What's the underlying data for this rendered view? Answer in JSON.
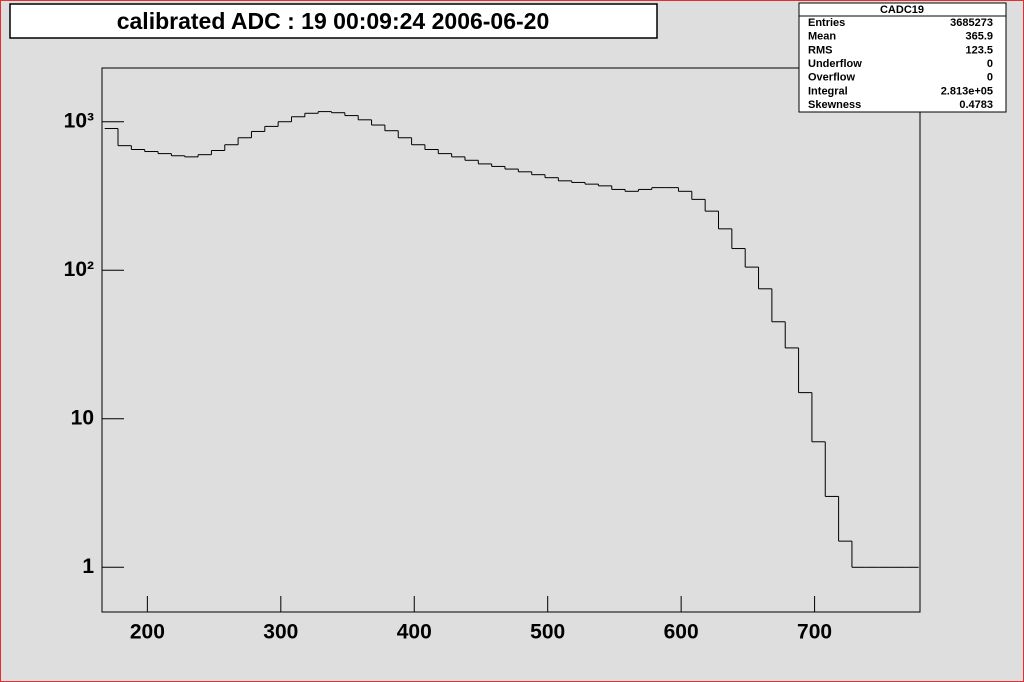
{
  "chart_data": {
    "type": "histogram",
    "title": "calibrated ADC :  19  00:09:24  2006-06-20",
    "bins": [
      168,
      178,
      188,
      198,
      208,
      218,
      228,
      238,
      248,
      258,
      268,
      278,
      288,
      298,
      308,
      318,
      328,
      338,
      348,
      358,
      368,
      378,
      388,
      398,
      408,
      418,
      428,
      438,
      448,
      458,
      468,
      478,
      488,
      498,
      508,
      518,
      528,
      538,
      548,
      558,
      568,
      578,
      588,
      598,
      608,
      618,
      628,
      638,
      648,
      658,
      668,
      678,
      688,
      698,
      708,
      718,
      728,
      738,
      748,
      758,
      768,
      778
    ],
    "values": [
      900,
      690,
      650,
      630,
      610,
      590,
      580,
      600,
      640,
      700,
      780,
      860,
      930,
      1000,
      1080,
      1140,
      1170,
      1150,
      1100,
      1030,
      950,
      870,
      780,
      700,
      650,
      610,
      580,
      550,
      520,
      500,
      480,
      460,
      440,
      420,
      400,
      390,
      380,
      370,
      350,
      340,
      350,
      360,
      360,
      340,
      300,
      250,
      190,
      140,
      105,
      75,
      45,
      30,
      15,
      7,
      3,
      1.5,
      1,
      1,
      1,
      1,
      1
    ],
    "color": "#000000",
    "log_y": true,
    "xlim": [
      166,
      779
    ],
    "xticks": [
      200,
      300,
      400,
      500,
      600,
      700
    ],
    "ylim": [
      0.5,
      2300
    ],
    "yticks": [
      1,
      10,
      {
        "value": 100,
        "label": "10²"
      },
      {
        "value": 1000,
        "label": "10³"
      }
    ],
    "stats": {
      "title": "CADC19",
      "rows": [
        [
          "Entries",
          "3685273"
        ],
        [
          "Mean",
          "365.9"
        ],
        [
          "RMS",
          "123.5"
        ],
        [
          "Underflow",
          "0"
        ],
        [
          "Overflow",
          "0"
        ],
        [
          "Integral",
          "2.813e+05"
        ],
        [
          "Skewness",
          "0.4783"
        ]
      ]
    }
  }
}
